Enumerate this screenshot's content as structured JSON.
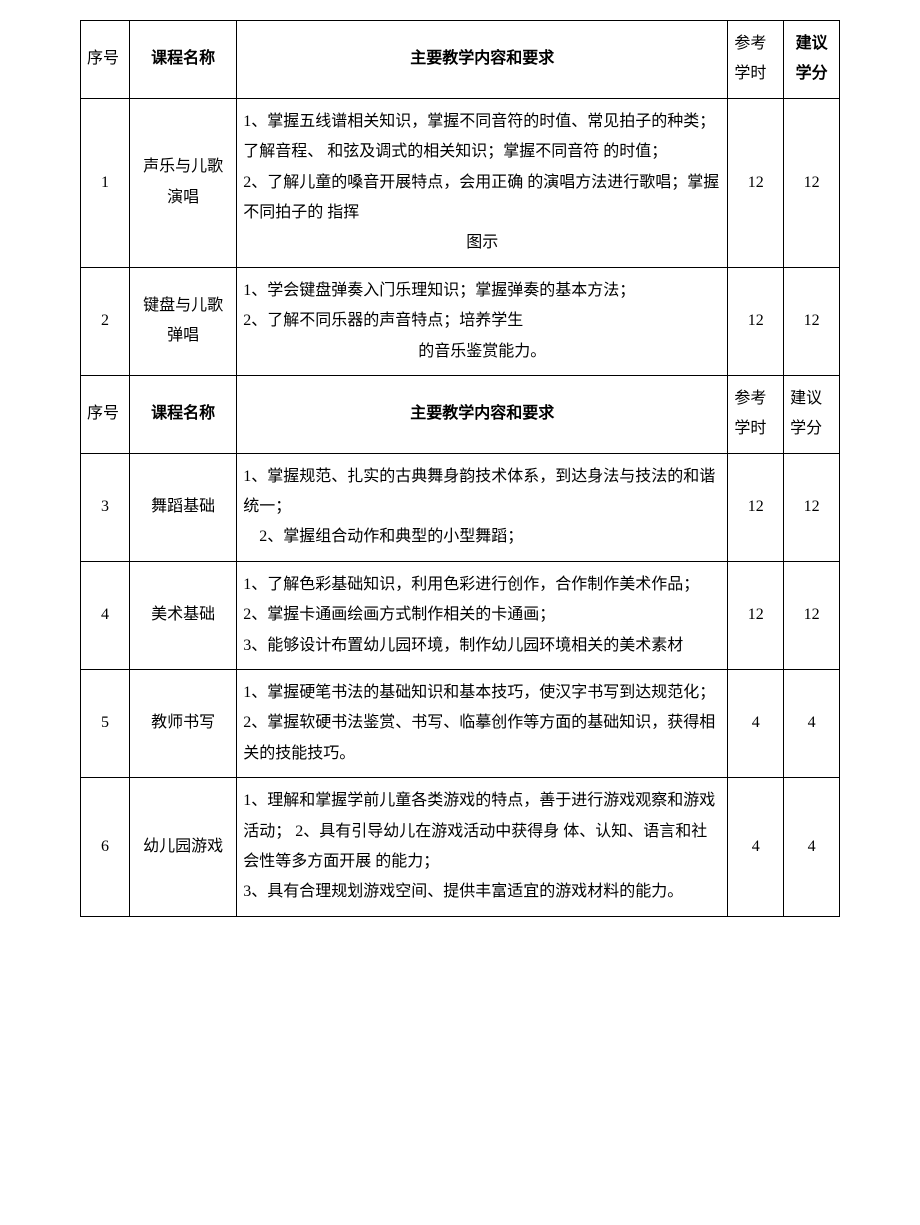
{
  "headers": {
    "seq": "序号",
    "name": "课程名称",
    "content": "主要教学内容和要求",
    "hours": "参考学时",
    "credits": "建议学分"
  },
  "rows": [
    {
      "seq": "1",
      "name": "声乐与儿歌演唱",
      "content_lines": [
        "1、掌握五线谱相关知识，掌握不同音符的时值、常见拍子的种类；了解音程、 和弦及调式的相关知识；掌握不同音符 的时值；",
        "2、了解儿童的嗓音开展特点，会用正确 的演唱方法进行歌唱；掌握不同拍子的 指挥"
      ],
      "content_centered_last": "图示",
      "hours": "12",
      "credits": "12"
    },
    {
      "seq": "2",
      "name": "键盘与儿歌弹唱",
      "content_lines": [
        "1、学会键盘弹奏入门乐理知识；掌握弹奏的基本方法；",
        "2、了解不同乐器的声音特点；培养学生"
      ],
      "content_centered_last": "的音乐鉴赏能力。",
      "hours": "12",
      "credits": "12"
    },
    {
      "seq": "3",
      "name": "舞蹈基础",
      "content_lines": [
        "1、掌握规范、扎实的古典舞身韵技术体系，到达身法与技法的和谐统一；",
        "　2、掌握组合动作和典型的小型舞蹈；"
      ],
      "hours": "12",
      "credits": "12"
    },
    {
      "seq": "4",
      "name": "美术基础",
      "content_lines": [
        "1、了解色彩基础知识，利用色彩进行创作，合作制作美术作品；",
        "2、掌握卡通画绘画方式制作相关的卡通画；",
        "3、能够设计布置幼儿园环境，制作幼儿园环境相关的美术素材"
      ],
      "hours": "12",
      "credits": "12"
    },
    {
      "seq": "5",
      "name": "教师书写",
      "content_lines": [
        "1、掌握硬笔书法的基础知识和基本技巧，使汉字书写到达规范化；",
        "2、掌握软硬书法鉴赏、书写、临摹创作等方面的基础知识，获得相关的技能技巧。"
      ],
      "hours": "4",
      "credits": "4"
    },
    {
      "seq": "6",
      "name": "幼儿园游戏",
      "content_lines": [
        "1、理解和掌握学前儿童各类游戏的特点，善于进行游戏观察和游戏活动； 2、具有引导幼儿在游戏活动中获得身 体、认知、语言和社会性等多方面开展 的能力；",
        "3、具有合理规划游戏空间、提供丰富适宜的游戏材料的能力。"
      ],
      "hours": "4",
      "credits": "4"
    }
  ]
}
